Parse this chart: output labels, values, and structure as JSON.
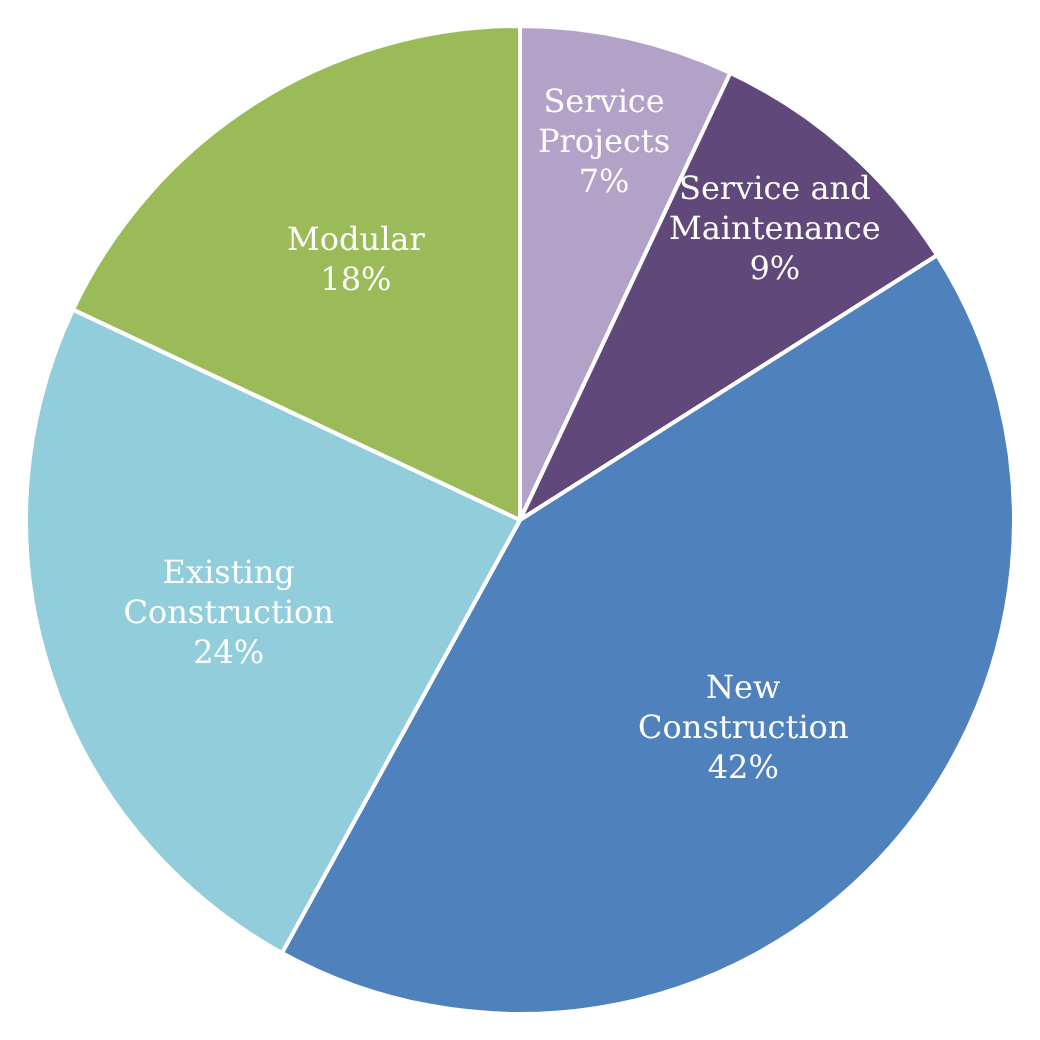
{
  "chart_data": {
    "type": "pie",
    "categories": [
      "Service Projects",
      "Service and Maintenance",
      "New Construction",
      "Existing Construction",
      "Modular"
    ],
    "values": [
      7,
      9,
      42,
      24,
      18
    ],
    "colors": [
      "#b3a2c8",
      "#60497a",
      "#4f81bd",
      "#92cddc",
      "#9bbb59"
    ],
    "value_labels": [
      "7%",
      "9%",
      "42%",
      "24%",
      "18%"
    ],
    "legend": false
  }
}
